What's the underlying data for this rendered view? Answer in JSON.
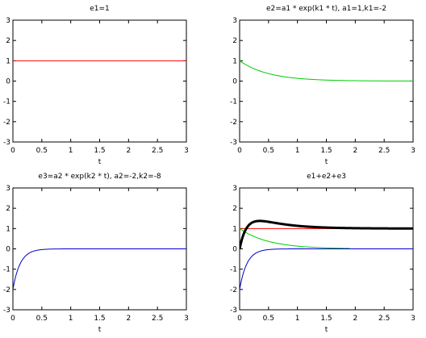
{
  "chart_data": [
    {
      "type": "line",
      "title": "e1=1",
      "xlabel": "t",
      "ylabel": "",
      "xlim": [
        0,
        3
      ],
      "ylim": [
        -3,
        3
      ],
      "xticks": [
        "0",
        "0.5",
        "1",
        "1.5",
        "2",
        "2.5",
        "3"
      ],
      "yticks": [
        "-3",
        "-2",
        "-1",
        "0",
        "1",
        "2",
        "3"
      ],
      "grid": false,
      "series": [
        {
          "color": "#ff0000",
          "expression": "1",
          "x": [
            0,
            0.5,
            1,
            1.5,
            2,
            2.5,
            3
          ],
          "y": [
            1,
            1,
            1,
            1,
            1,
            1,
            1
          ]
        }
      ]
    },
    {
      "type": "line",
      "title": "e2=a1 * exp(k1 * t), a1=1,k1=-2",
      "xlabel": "t",
      "ylabel": "",
      "xlim": [
        0,
        3
      ],
      "ylim": [
        -3,
        3
      ],
      "xticks": [
        "0",
        "0.5",
        "1",
        "1.5",
        "2",
        "2.5",
        "3"
      ],
      "yticks": [
        "-3",
        "-2",
        "-1",
        "0",
        "1",
        "2",
        "3"
      ],
      "grid": false,
      "series": [
        {
          "color": "#00cc00",
          "expression": "exp(-2t)",
          "x": [
            0,
            0.25,
            0.5,
            0.75,
            1,
            1.5,
            2,
            2.5,
            3
          ],
          "y": [
            1,
            0.61,
            0.37,
            0.22,
            0.14,
            0.05,
            0.02,
            0.01,
            0.0
          ]
        }
      ]
    },
    {
      "type": "line",
      "title": "e3=a2 * exp(k2 * t), a2=-2,k2=-8",
      "xlabel": "t",
      "ylabel": "",
      "xlim": [
        0,
        3
      ],
      "ylim": [
        -3,
        3
      ],
      "xticks": [
        "0",
        "0.5",
        "1",
        "1.5",
        "2",
        "2.5",
        "3"
      ],
      "yticks": [
        "-3",
        "-2",
        "-1",
        "0",
        "1",
        "2",
        "3"
      ],
      "grid": false,
      "series": [
        {
          "color": "#0000cc",
          "expression": "-2*exp(-8t)",
          "x": [
            0,
            0.1,
            0.2,
            0.3,
            0.5,
            0.75,
            1,
            3
          ],
          "y": [
            -2,
            -0.9,
            -0.4,
            -0.18,
            -0.04,
            0.0,
            0.0,
            0.0
          ]
        }
      ]
    },
    {
      "type": "line",
      "title": "e1+e2+e3",
      "xlabel": "t",
      "ylabel": "",
      "xlim": [
        0,
        3
      ],
      "ylim": [
        -3,
        3
      ],
      "xticks": [
        "0",
        "0.5",
        "1",
        "1.5",
        "2",
        "2.5",
        "3"
      ],
      "yticks": [
        "-3",
        "-2",
        "-1",
        "0",
        "1",
        "2",
        "3"
      ],
      "grid": false,
      "series": [
        {
          "color": "#ff0000",
          "expression": "1",
          "x": [
            0,
            3
          ],
          "y": [
            1,
            1
          ]
        },
        {
          "color": "#00cc00",
          "expression": "exp(-2t)",
          "x": [
            0,
            0.25,
            0.5,
            1,
            1.5,
            1.9
          ],
          "y": [
            1,
            0.61,
            0.37,
            0.14,
            0.05,
            0.02
          ]
        },
        {
          "color": "#0000cc",
          "expression": "-2*exp(-8t)",
          "x": [
            0,
            0.1,
            0.2,
            0.3,
            0.5,
            1,
            3
          ],
          "y": [
            -2,
            -0.9,
            -0.4,
            -0.18,
            -0.04,
            0.0,
            0.0
          ]
        },
        {
          "color": "#000000",
          "expression": "1+exp(-2t)-2*exp(-8t)",
          "bold": true,
          "x": [
            0,
            0.1,
            0.2,
            0.3,
            0.5,
            1,
            1.5,
            2,
            3
          ],
          "y": [
            0,
            0.92,
            1.27,
            1.37,
            1.33,
            1.14,
            1.05,
            1.02,
            1.0
          ]
        }
      ]
    }
  ]
}
